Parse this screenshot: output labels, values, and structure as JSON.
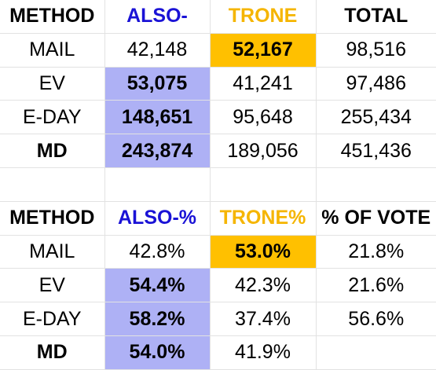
{
  "table1": {
    "headers": [
      "METHOD",
      "ALSO-",
      "TRONE",
      "TOTAL"
    ],
    "rows": [
      [
        "MAIL",
        "42,148",
        "52,167",
        "98,516"
      ],
      [
        "EV",
        "53,075",
        "41,241",
        "97,486"
      ],
      [
        "E-DAY",
        "148,651",
        "95,648",
        "255,434"
      ],
      [
        "MD",
        "243,874",
        "189,056",
        "451,436"
      ]
    ]
  },
  "table2": {
    "headers": [
      "METHOD",
      "ALSO-%",
      "TRONE%",
      "% OF VOTE"
    ],
    "rows": [
      [
        "MAIL",
        "42.8%",
        "53.0%",
        "21.8%"
      ],
      [
        "EV",
        "54.4%",
        "42.3%",
        "21.6%"
      ],
      [
        "E-DAY",
        "58.2%",
        "37.4%",
        "56.6%"
      ],
      [
        "MD",
        "54.0%",
        "41.9%",
        ""
      ]
    ]
  },
  "colors": {
    "also_header": "#1a12d6",
    "trone_header": "#f5b500",
    "highlight_blue": "#aeb1f5",
    "highlight_orange": "#ffc000"
  }
}
